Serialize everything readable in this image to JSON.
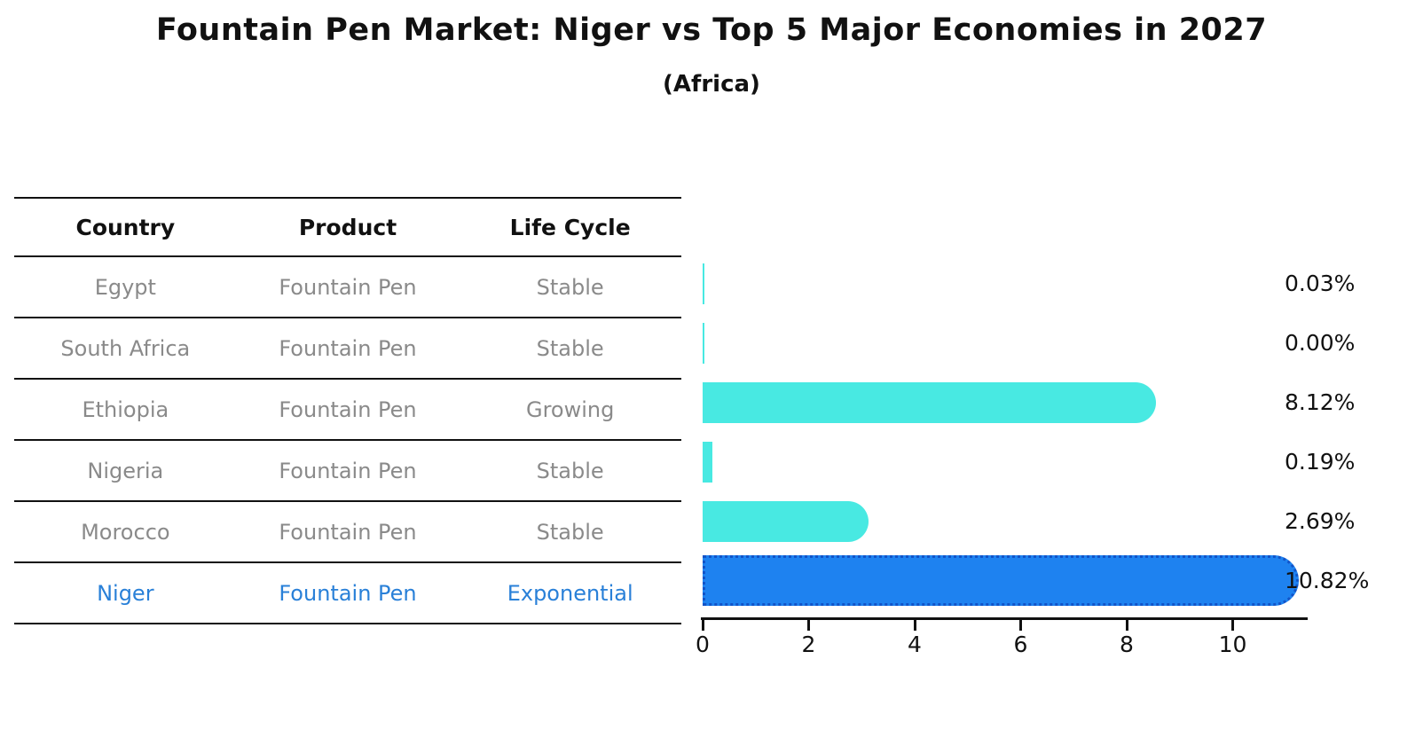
{
  "header": {
    "title": "Fountain Pen Market: Niger vs Top 5 Major Economies in 2027",
    "subtitle": "(Africa)"
  },
  "table": {
    "columns": [
      "Country",
      "Product",
      "Life Cycle"
    ],
    "rows": [
      {
        "country": "Egypt",
        "product": "Fountain Pen",
        "life_cycle": "Stable",
        "highlighted": false
      },
      {
        "country": "South Africa",
        "product": "Fountain Pen",
        "life_cycle": "Stable",
        "highlighted": false
      },
      {
        "country": "Ethiopia",
        "product": "Fountain Pen",
        "life_cycle": "Growing",
        "highlighted": false
      },
      {
        "country": "Nigeria",
        "product": "Fountain Pen",
        "life_cycle": "Stable",
        "highlighted": false
      },
      {
        "country": "Morocco",
        "product": "Fountain Pen",
        "life_cycle": "Stable",
        "highlighted": false
      },
      {
        "country": "Niger",
        "product": "Fountain Pen",
        "life_cycle": "Exponential",
        "highlighted": true
      }
    ]
  },
  "chart_data": {
    "type": "bar",
    "orientation": "horizontal",
    "title": "Fountain Pen Market: Niger vs Top 5 Major Economies in 2027",
    "subtitle": "(Africa)",
    "categories": [
      "Egypt",
      "South Africa",
      "Ethiopia",
      "Nigeria",
      "Morocco",
      "Niger"
    ],
    "values": [
      0.03,
      0.0,
      8.12,
      0.19,
      2.69,
      10.82
    ],
    "value_labels": [
      "0.03%",
      "0.00%",
      "8.12%",
      "0.19%",
      "2.69%",
      "10.82%"
    ],
    "x_ticks": [
      0,
      2,
      4,
      6,
      8,
      10
    ],
    "xlim": [
      0,
      11.4
    ],
    "grid": false,
    "legend": "none",
    "highlight_index": 5,
    "bar_color": "#48E9E2",
    "highlight_bar_color": "#1E82F0",
    "highlight_border_color": "#1254C8",
    "highlight_text_color": "#2980d8",
    "axis_color": "#111111"
  }
}
